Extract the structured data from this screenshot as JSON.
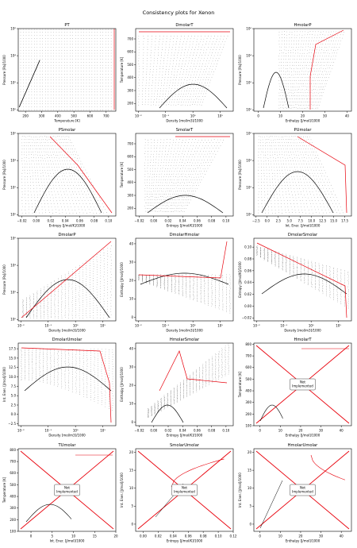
{
  "figure": {
    "title": "Consistency plots for Xenon"
  },
  "colors": {
    "boundary": "#e8000b",
    "mesh": "#000000",
    "dome": "#000000",
    "axes": "#000000",
    "not_impl_box_border": "#444444"
  },
  "chart_data": [
    {
      "type": "scatter",
      "title": "PT",
      "xlabel": "Temperature [K]",
      "ylabel": "Pressure [Pa]/1000",
      "xlim": [
        155,
        760
      ],
      "ylim": [
        0.8,
        1000000
      ],
      "xscale": "linear",
      "yscale": "log",
      "xticks": [
        200,
        300,
        400,
        500,
        600,
        700
      ],
      "yticks": [
        1,
        100,
        10000,
        1000000
      ],
      "ytick_labels": [
        "10⁰",
        "10²",
        "10⁴",
        "10⁶"
      ]
    },
    {
      "type": "scatter",
      "title": "DmolarT",
      "xlabel": "Density [mol/m3]/1000",
      "ylabel": "Temperature [K]",
      "xlim": [
        0.008,
        30
      ],
      "ylim": [
        140,
        780
      ],
      "xscale": "log",
      "yscale": "linear",
      "xticks": [
        0.01,
        0.1,
        1,
        10
      ],
      "xtick_labels": [
        "10⁻²",
        "10⁻¹",
        "10⁰",
        "10¹"
      ],
      "yticks": [
        200,
        300,
        400,
        500,
        600,
        700
      ]
    },
    {
      "type": "scatter",
      "title": "HmolarP",
      "xlabel": "Enthalpy [J/mol]/1000",
      "ylabel": "Pressure [Pa]/1000",
      "xlim": [
        -2,
        42
      ],
      "ylim": [
        0.8,
        1000000
      ],
      "xscale": "linear",
      "yscale": "log",
      "xticks": [
        0,
        10,
        20,
        30,
        40
      ],
      "yticks": [
        1,
        100,
        10000,
        1000000
      ],
      "ytick_labels": [
        "10⁰",
        "10²",
        "10⁴",
        "10⁶"
      ]
    },
    {
      "type": "scatter",
      "title": "PSmolar",
      "xlabel": "Entropy [J/mol/K]/1000",
      "ylabel": "Pressure [Pa]/1000",
      "xlim": [
        -0.025,
        0.11
      ],
      "ylim": [
        0.8,
        1000000
      ],
      "xscale": "linear",
      "yscale": "log",
      "xticks": [
        -0.02,
        0.0,
        0.02,
        0.04,
        0.06,
        0.08,
        0.1
      ],
      "xtick_labels": [
        "−0.02",
        "0.00",
        "0.02",
        "0.04",
        "0.06",
        "0.08",
        "0.10"
      ],
      "yticks": [
        1,
        100,
        10000,
        1000000
      ],
      "ytick_labels": [
        "10⁰",
        "10²",
        "10⁴",
        "10⁶"
      ]
    },
    {
      "type": "scatter",
      "title": "SmolarT",
      "xlabel": "Entropy [J/mol/K]/1000",
      "ylabel": "Temperature [K]",
      "xlim": [
        -0.025,
        0.11
      ],
      "ylim": [
        140,
        780
      ],
      "xscale": "linear",
      "yscale": "linear",
      "xticks": [
        -0.02,
        0.0,
        0.02,
        0.04,
        0.06,
        0.08,
        0.1
      ],
      "xtick_labels": [
        "−0.02",
        "0.00",
        "0.02",
        "0.04",
        "0.06",
        "0.08",
        "0.10"
      ],
      "yticks": [
        200,
        300,
        400,
        500,
        600,
        700
      ]
    },
    {
      "type": "scatter",
      "title": "PUmolar",
      "xlabel": "Int. Ener. [J/mol]/1000",
      "ylabel": "Pressure [Pa]/1000",
      "xlim": [
        -3,
        19
      ],
      "ylim": [
        0.8,
        1000000
      ],
      "xscale": "linear",
      "yscale": "log",
      "xticks": [
        -2.5,
        0,
        2.5,
        5,
        7.5,
        10,
        12.5,
        15,
        17.5
      ],
      "xtick_labels": [
        "−2.5",
        "0.0",
        "2.5",
        "5.0",
        "7.5",
        "10.0",
        "12.5",
        "15.0",
        "17.5"
      ],
      "yticks": [
        1,
        100,
        10000,
        1000000
      ],
      "ytick_labels": [
        "10⁰",
        "10²",
        "10⁴",
        "10⁶"
      ]
    },
    {
      "type": "scatter",
      "title": "DmolarP",
      "xlabel": "Density [mol/m3]/1000",
      "ylabel": "Pressure [Pa]/1000",
      "xlim": [
        0.008,
        30
      ],
      "ylim": [
        0.8,
        1000000
      ],
      "xscale": "log",
      "yscale": "log",
      "xticks": [
        0.01,
        0.1,
        1,
        10
      ],
      "xtick_labels": [
        "10⁻²",
        "10⁻¹",
        "10⁰",
        "10¹"
      ],
      "yticks": [
        1,
        100,
        10000,
        1000000
      ],
      "ytick_labels": [
        "10⁰",
        "10²",
        "10⁴",
        "10⁶"
      ]
    },
    {
      "type": "scatter",
      "title": "DmolarHmolar",
      "xlabel": "Density [mol/m3]/1000",
      "ylabel": "Enthalpy [J/mol]/1000",
      "xlim": [
        0.008,
        30
      ],
      "ylim": [
        -2,
        43
      ],
      "xscale": "log",
      "yscale": "linear",
      "xticks": [
        0.01,
        0.1,
        1,
        10
      ],
      "xtick_labels": [
        "10⁻²",
        "10⁻¹",
        "10⁰",
        "10¹"
      ],
      "yticks": [
        0,
        10,
        20,
        30,
        40
      ]
    },
    {
      "type": "scatter",
      "title": "DmolarSmolar",
      "xlabel": "Density [mol/m3]/1000",
      "ylabel": "Entropy [J/mol/K]/1000",
      "xlim": [
        0.008,
        30
      ],
      "ylim": [
        -0.025,
        0.115
      ],
      "xscale": "log",
      "yscale": "linear",
      "xticks": [
        0.01,
        0.1,
        1,
        10
      ],
      "xtick_labels": [
        "10⁻²",
        "10⁻¹",
        "10⁰",
        "10¹"
      ],
      "yticks": [
        -0.02,
        0.0,
        0.02,
        0.04,
        0.06,
        0.08,
        0.1
      ],
      "ytick_labels": [
        "−0.02",
        "0.00",
        "0.02",
        "0.04",
        "0.06",
        "0.08",
        "0.10"
      ]
    },
    {
      "type": "scatter",
      "title": "DmolarUmolar",
      "xlabel": "Density [mol/m3]/1000",
      "ylabel": "Int. Ener. [J/mol]/1000",
      "xlim": [
        0.008,
        30
      ],
      "ylim": [
        -3,
        19
      ],
      "xscale": "log",
      "yscale": "linear",
      "xticks": [
        0.01,
        0.1,
        1,
        10
      ],
      "xtick_labels": [
        "10⁻²",
        "10⁻¹",
        "10⁰",
        "10¹"
      ],
      "yticks": [
        -2.5,
        0,
        2.5,
        5,
        7.5,
        10,
        12.5,
        15,
        17.5
      ],
      "ytick_labels": [
        "−2.5",
        "0.0",
        "2.5",
        "5.0",
        "7.5",
        "10.0",
        "12.5",
        "15.0",
        "17.5"
      ]
    },
    {
      "type": "scatter",
      "title": "HmolarSmolar",
      "xlabel": "Entropy [J/mol/K]/1000",
      "ylabel": "Enthalpy [J/mol]/1000",
      "xlim": [
        -0.025,
        0.11
      ],
      "ylim": [
        -2,
        43
      ],
      "xscale": "linear",
      "yscale": "linear",
      "xticks": [
        -0.02,
        0.0,
        0.02,
        0.04,
        0.06,
        0.08,
        0.1
      ],
      "xtick_labels": [
        "−0.02",
        "0.00",
        "0.02",
        "0.04",
        "0.06",
        "0.08",
        "0.10"
      ],
      "yticks": [
        0,
        10,
        20,
        30,
        40
      ]
    },
    {
      "type": "line",
      "title": "HmolarT",
      "xlabel": "Enthalpy [J/mol]/1000",
      "ylabel": "Temperature [K]",
      "xlim": [
        -3,
        45
      ],
      "ylim": [
        100,
        810
      ],
      "xscale": "linear",
      "yscale": "linear",
      "xticks": [
        0,
        10,
        20,
        30,
        40
      ],
      "yticks": [
        100,
        200,
        300,
        400,
        500,
        600,
        700,
        800
      ],
      "annotation": "Not\nImplemented"
    },
    {
      "type": "line",
      "title": "TUmolar",
      "xlabel": "Int. Ener. [J/mol]/1000",
      "ylabel": "Temperature [K]",
      "xlim": [
        -3,
        20
      ],
      "ylim": [
        100,
        810
      ],
      "xscale": "linear",
      "yscale": "linear",
      "xticks": [
        0,
        5,
        10,
        15,
        20
      ],
      "yticks": [
        100,
        200,
        300,
        400,
        500,
        600,
        700,
        800
      ],
      "annotation": "Not\nImplemented"
    },
    {
      "type": "line",
      "title": "SmolarUmolar",
      "xlabel": "Entropy [J/mol/K]/1000",
      "ylabel": "Int. Ener. [J/mol]/1000",
      "xlim": [
        -0.01,
        0.12
      ],
      "ylim": [
        -2,
        21
      ],
      "xscale": "linear",
      "yscale": "linear",
      "xticks": [
        0.0,
        0.02,
        0.04,
        0.06,
        0.08,
        0.1,
        0.12
      ],
      "xtick_labels": [
        "0.00",
        "0.02",
        "0.04",
        "0.06",
        "0.08",
        "0.10",
        "0.12"
      ],
      "yticks": [
        0,
        5,
        10,
        15,
        20
      ],
      "annotation": "Not\nImplemented"
    },
    {
      "type": "line",
      "title": "HmolarUmolar",
      "xlabel": "Enthalpy [J/mol]/1000",
      "ylabel": "Int. Ener. [J/mol]/1000",
      "xlim": [
        -3,
        45
      ],
      "ylim": [
        -2,
        21
      ],
      "xscale": "linear",
      "yscale": "linear",
      "xticks": [
        0,
        10,
        20,
        30,
        40
      ],
      "yticks": [
        0,
        5,
        10,
        15,
        20
      ],
      "annotation": "Not\nImplemented"
    }
  ]
}
